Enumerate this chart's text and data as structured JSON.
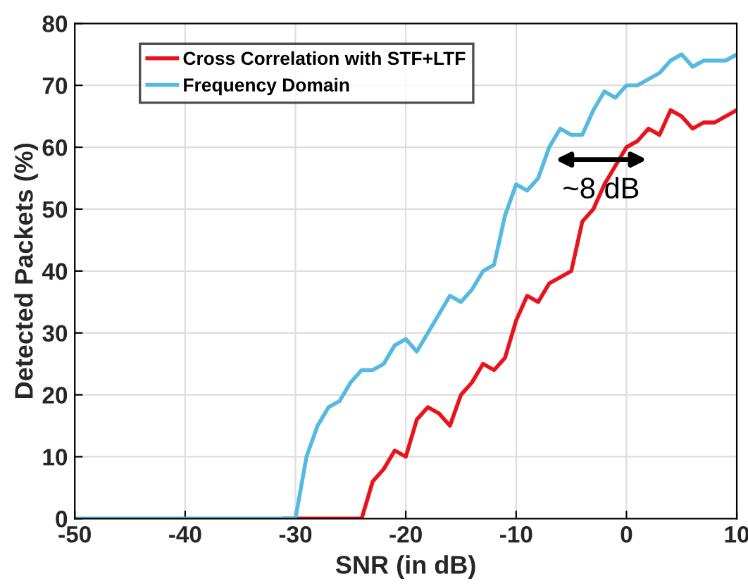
{
  "chart_data": {
    "type": "line",
    "xlabel": "SNR (in dB)",
    "ylabel": "Detected Packets (%)",
    "x": [
      -50,
      -49,
      -48,
      -47,
      -46,
      -45,
      -44,
      -43,
      -42,
      -41,
      -40,
      -39,
      -38,
      -37,
      -36,
      -35,
      -34,
      -33,
      -32,
      -31,
      -30,
      -29,
      -28,
      -27,
      -26,
      -25,
      -24,
      -23,
      -22,
      -21,
      -20,
      -19,
      -18,
      -17,
      -16,
      -15,
      -14,
      -13,
      -12,
      -11,
      -10,
      -9,
      -8,
      -7,
      -6,
      -5,
      -4,
      -3,
      -2,
      -1,
      0,
      1,
      2,
      3,
      4,
      5,
      6,
      7,
      8,
      9,
      10
    ],
    "series": [
      {
        "name": "Cross Correlation with STF+LTF",
        "color": "#e8141b",
        "values": [
          null,
          null,
          null,
          null,
          null,
          null,
          null,
          null,
          null,
          null,
          null,
          null,
          null,
          null,
          null,
          null,
          null,
          null,
          null,
          0,
          0,
          0,
          0,
          0,
          0,
          0,
          0,
          6,
          8,
          11,
          10,
          16,
          18,
          17,
          15,
          20,
          22,
          25,
          24,
          26,
          32,
          36,
          35,
          38,
          39,
          40,
          48,
          50,
          54,
          57,
          60,
          61,
          63,
          62,
          66,
          65,
          63,
          64,
          64,
          65,
          66
        ]
      },
      {
        "name": "Frequency Domain",
        "color": "#56b9e0",
        "values": [
          0,
          0,
          0,
          0,
          0,
          0,
          0,
          0,
          0,
          0,
          0,
          0,
          0,
          0,
          0,
          0,
          0,
          0,
          0,
          0,
          0,
          10,
          15,
          18,
          19,
          22,
          24,
          24,
          25,
          28,
          29,
          27,
          30,
          33,
          36,
          35,
          37,
          40,
          41,
          49,
          54,
          53,
          55,
          60,
          63,
          62,
          62,
          66,
          69,
          68,
          70,
          70,
          71,
          72,
          74,
          75,
          73,
          74,
          74,
          74,
          75
        ]
      }
    ],
    "xlim": [
      -50,
      10
    ],
    "xticks": [
      -50,
      -40,
      -30,
      -20,
      -10,
      0,
      10
    ],
    "ylim": [
      0,
      80
    ],
    "yticks": [
      0,
      10,
      20,
      30,
      40,
      50,
      60,
      70,
      80
    ],
    "grid": true,
    "legend": "top left",
    "marker": "none",
    "line_style": "solid",
    "annotations": [
      "~8 dB"
    ]
  }
}
